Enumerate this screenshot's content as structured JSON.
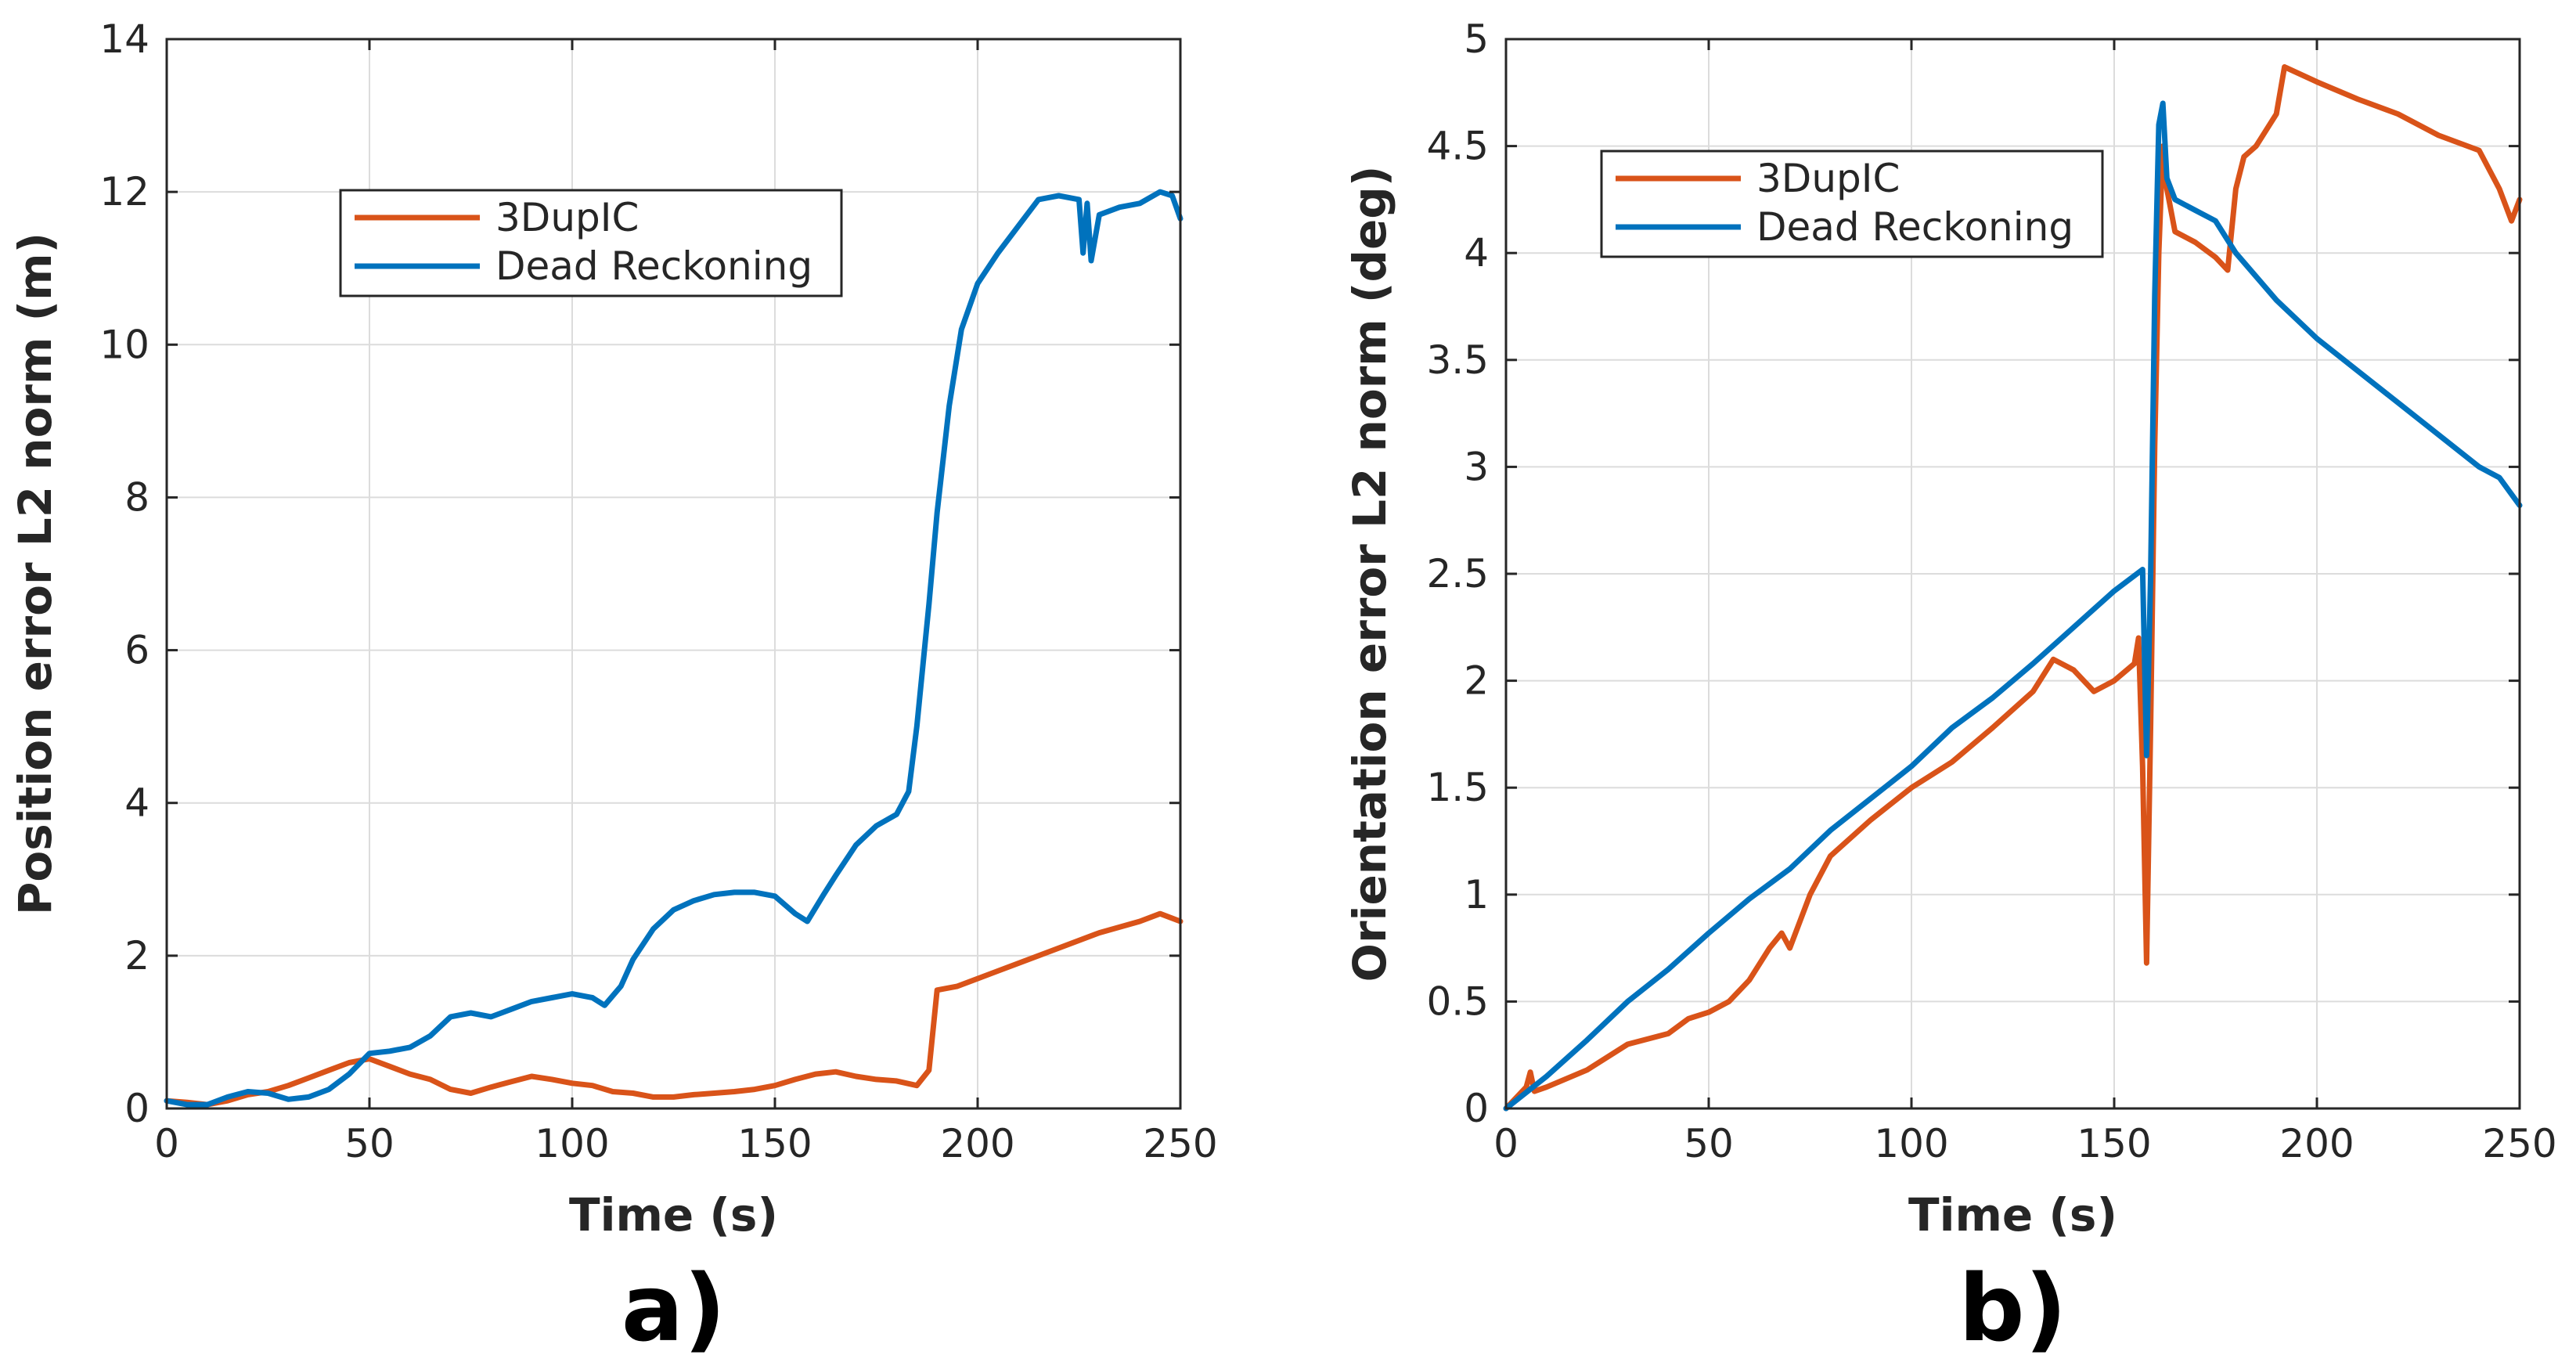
{
  "colors": {
    "series_3duplc": "#D95319",
    "series_dead_reckoning": "#0072BD",
    "axis": "#262626",
    "grid": "#dcdcdc"
  },
  "chart_data": [
    {
      "type": "line",
      "panel_label": "a)",
      "xlabel": "Time (s)",
      "ylabel": "Position error L2 norm (m)",
      "xlim": [
        0,
        250
      ],
      "ylim": [
        0,
        14
      ],
      "xticks": [
        0,
        50,
        100,
        150,
        200,
        250
      ],
      "yticks": [
        0,
        2,
        4,
        6,
        8,
        10,
        12,
        14
      ],
      "grid": true,
      "legend_position": "upper-center",
      "series": [
        {
          "name": "3DupIC",
          "x": [
            0,
            5,
            10,
            15,
            20,
            25,
            30,
            35,
            40,
            45,
            50,
            55,
            60,
            65,
            70,
            75,
            80,
            85,
            90,
            95,
            100,
            105,
            110,
            115,
            120,
            125,
            130,
            135,
            140,
            145,
            150,
            155,
            160,
            165,
            170,
            175,
            180,
            185,
            188,
            190,
            195,
            200,
            210,
            220,
            230,
            240,
            245,
            250
          ],
          "y": [
            0.1,
            0.08,
            0.05,
            0.1,
            0.18,
            0.22,
            0.3,
            0.4,
            0.5,
            0.6,
            0.65,
            0.55,
            0.45,
            0.38,
            0.25,
            0.2,
            0.28,
            0.35,
            0.42,
            0.38,
            0.33,
            0.3,
            0.22,
            0.2,
            0.15,
            0.15,
            0.18,
            0.2,
            0.22,
            0.25,
            0.3,
            0.38,
            0.45,
            0.48,
            0.42,
            0.38,
            0.36,
            0.3,
            0.5,
            1.55,
            1.6,
            1.7,
            1.9,
            2.1,
            2.3,
            2.45,
            2.55,
            2.45
          ]
        },
        {
          "name": "Dead Reckoning",
          "x": [
            0,
            5,
            10,
            15,
            20,
            25,
            30,
            35,
            40,
            45,
            50,
            55,
            60,
            65,
            70,
            75,
            80,
            85,
            90,
            95,
            100,
            105,
            108,
            112,
            115,
            120,
            125,
            130,
            135,
            140,
            145,
            150,
            155,
            158,
            162,
            165,
            170,
            175,
            180,
            183,
            185,
            188,
            190,
            193,
            196,
            200,
            205,
            210,
            215,
            220,
            225,
            226,
            227,
            228,
            230,
            235,
            240,
            245,
            248,
            250
          ],
          "y": [
            0.1,
            0.05,
            0.05,
            0.15,
            0.22,
            0.2,
            0.12,
            0.15,
            0.25,
            0.45,
            0.72,
            0.75,
            0.8,
            0.95,
            1.2,
            1.25,
            1.2,
            1.3,
            1.4,
            1.45,
            1.5,
            1.45,
            1.35,
            1.6,
            1.95,
            2.35,
            2.6,
            2.72,
            2.8,
            2.83,
            2.83,
            2.78,
            2.55,
            2.45,
            2.8,
            3.05,
            3.45,
            3.7,
            3.85,
            4.15,
            5.0,
            6.6,
            7.8,
            9.2,
            10.2,
            10.8,
            11.2,
            11.55,
            11.9,
            11.95,
            11.9,
            11.2,
            11.85,
            11.1,
            11.7,
            11.8,
            11.85,
            12.0,
            11.95,
            11.65
          ]
        }
      ]
    },
    {
      "type": "line",
      "panel_label": "b)",
      "xlabel": "Time (s)",
      "ylabel": "Orientation error L2 norm (deg)",
      "xlim": [
        0,
        250
      ],
      "ylim": [
        0,
        5
      ],
      "xticks": [
        0,
        50,
        100,
        150,
        200,
        250
      ],
      "yticks": [
        0,
        0.5,
        1,
        1.5,
        2,
        2.5,
        3,
        3.5,
        4,
        4.5,
        5
      ],
      "grid": true,
      "legend_position": "upper-left",
      "series": [
        {
          "name": "3DupIC",
          "x": [
            0,
            5,
            6,
            7,
            10,
            20,
            30,
            40,
            45,
            50,
            55,
            60,
            65,
            68,
            70,
            75,
            80,
            90,
            100,
            110,
            120,
            130,
            135,
            140,
            145,
            150,
            155,
            156,
            157,
            158,
            159,
            160,
            161,
            162,
            163,
            165,
            170,
            175,
            178,
            180,
            182,
            185,
            190,
            192,
            200,
            210,
            220,
            230,
            240,
            245,
            248,
            250
          ],
          "y": [
            0,
            0.1,
            0.17,
            0.08,
            0.1,
            0.18,
            0.3,
            0.35,
            0.42,
            0.45,
            0.5,
            0.6,
            0.75,
            0.82,
            0.75,
            1.0,
            1.18,
            1.35,
            1.5,
            1.62,
            1.78,
            1.95,
            2.1,
            2.05,
            1.95,
            2.0,
            2.08,
            2.2,
            1.6,
            0.68,
            1.8,
            3.1,
            4.0,
            4.5,
            4.3,
            4.1,
            4.05,
            3.98,
            3.92,
            4.3,
            4.45,
            4.5,
            4.65,
            4.87,
            4.8,
            4.72,
            4.65,
            4.55,
            4.48,
            4.3,
            4.15,
            4.25
          ]
        },
        {
          "name": "Dead Reckoning",
          "x": [
            0,
            10,
            20,
            30,
            40,
            50,
            60,
            70,
            80,
            90,
            100,
            110,
            120,
            130,
            140,
            150,
            157,
            158,
            159,
            160,
            161,
            162,
            163,
            165,
            170,
            175,
            180,
            190,
            200,
            210,
            220,
            230,
            240,
            245,
            250
          ],
          "y": [
            0,
            0.15,
            0.32,
            0.5,
            0.65,
            0.82,
            0.98,
            1.12,
            1.3,
            1.45,
            1.6,
            1.78,
            1.92,
            2.08,
            2.25,
            2.42,
            2.52,
            1.65,
            2.5,
            3.8,
            4.6,
            4.7,
            4.35,
            4.25,
            4.2,
            4.15,
            4.0,
            3.78,
            3.6,
            3.45,
            3.3,
            3.15,
            3.0,
            2.95,
            2.82
          ]
        }
      ]
    }
  ]
}
